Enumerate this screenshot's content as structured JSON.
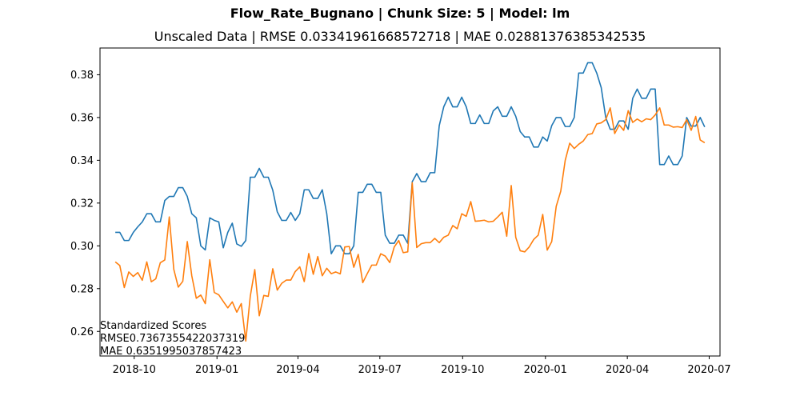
{
  "title": "Flow_Rate_Bugnano | Chunk Size: 5 | Model: lm",
  "subtitle": "Unscaled Data | RMSE 0.03341961668572718 | MAE 0.02881376385342535",
  "annotation": {
    "heading": "Standardized Scores",
    "rmse": "RMSE0.7367355422037319",
    "mae": "MAE 0.6351995037857423"
  },
  "chart_data": {
    "type": "line",
    "xlim": [
      "2018-08-24",
      "2020-07-13"
    ],
    "ylim": [
      0.2485,
      0.3925
    ],
    "grid": false,
    "x_ticks": [
      {
        "date": "2018-10-01",
        "label": "2018-10"
      },
      {
        "date": "2019-01-01",
        "label": "2019-01"
      },
      {
        "date": "2019-04-01",
        "label": "2019-04"
      },
      {
        "date": "2019-07-01",
        "label": "2019-07"
      },
      {
        "date": "2019-10-01",
        "label": "2019-10"
      },
      {
        "date": "2020-01-01",
        "label": "2020-01"
      },
      {
        "date": "2020-04-01",
        "label": "2020-04"
      },
      {
        "date": "2020-07-01",
        "label": "2020-07"
      }
    ],
    "y_ticks": [
      0.26,
      0.28,
      0.3,
      0.32,
      0.34,
      0.36,
      0.38
    ],
    "series": [
      {
        "color": "#1f77b4",
        "points": [
          [
            "2018-09-10",
            0.3063
          ],
          [
            "2018-09-15",
            0.3063
          ],
          [
            "2018-09-20",
            0.3025
          ],
          [
            "2018-09-25",
            0.3025
          ],
          [
            "2018-09-30",
            0.3063
          ],
          [
            "2018-10-05",
            0.3089
          ],
          [
            "2018-10-10",
            0.3112
          ],
          [
            "2018-10-15",
            0.315
          ],
          [
            "2018-10-20",
            0.315
          ],
          [
            "2018-10-25",
            0.3112
          ],
          [
            "2018-10-30",
            0.3112
          ],
          [
            "2018-11-04",
            0.3212
          ],
          [
            "2018-11-09",
            0.3231
          ],
          [
            "2018-11-14",
            0.3231
          ],
          [
            "2018-11-19",
            0.3272
          ],
          [
            "2018-11-24",
            0.3272
          ],
          [
            "2018-11-29",
            0.3231
          ],
          [
            "2018-12-04",
            0.315
          ],
          [
            "2018-12-09",
            0.3131
          ],
          [
            "2018-12-14",
            0.3
          ],
          [
            "2018-12-19",
            0.2981
          ],
          [
            "2018-12-24",
            0.3131
          ],
          [
            "2018-12-29",
            0.3119
          ],
          [
            "2019-01-03",
            0.3112
          ],
          [
            "2019-01-08",
            0.2991
          ],
          [
            "2019-01-13",
            0.3063
          ],
          [
            "2019-01-18",
            0.3106
          ],
          [
            "2019-01-23",
            0.3009
          ],
          [
            "2019-01-28",
            0.2998
          ],
          [
            "2019-02-02",
            0.3025
          ],
          [
            "2019-02-07",
            0.3321
          ],
          [
            "2019-02-12",
            0.3321
          ],
          [
            "2019-02-17",
            0.3362
          ],
          [
            "2019-02-22",
            0.3321
          ],
          [
            "2019-02-27",
            0.3321
          ],
          [
            "2019-03-04",
            0.326
          ],
          [
            "2019-03-09",
            0.3159
          ],
          [
            "2019-03-14",
            0.3119
          ],
          [
            "2019-03-19",
            0.3119
          ],
          [
            "2019-03-24",
            0.3156
          ],
          [
            "2019-03-29",
            0.3119
          ],
          [
            "2019-04-03",
            0.315
          ],
          [
            "2019-04-08",
            0.3262
          ],
          [
            "2019-04-13",
            0.3262
          ],
          [
            "2019-04-18",
            0.3222
          ],
          [
            "2019-04-23",
            0.3222
          ],
          [
            "2019-04-28",
            0.3262
          ],
          [
            "2019-05-03",
            0.315
          ],
          [
            "2019-05-08",
            0.2963
          ],
          [
            "2019-05-13",
            0.3
          ],
          [
            "2019-05-18",
            0.3
          ],
          [
            "2019-05-23",
            0.2963
          ],
          [
            "2019-05-28",
            0.2963
          ],
          [
            "2019-06-02",
            0.3
          ],
          [
            "2019-06-07",
            0.325
          ],
          [
            "2019-06-12",
            0.325
          ],
          [
            "2019-06-17",
            0.3288
          ],
          [
            "2019-06-22",
            0.3288
          ],
          [
            "2019-06-27",
            0.325
          ],
          [
            "2019-07-02",
            0.325
          ],
          [
            "2019-07-07",
            0.305
          ],
          [
            "2019-07-12",
            0.3012
          ],
          [
            "2019-07-17",
            0.3012
          ],
          [
            "2019-07-22",
            0.305
          ],
          [
            "2019-07-27",
            0.305
          ],
          [
            "2019-08-01",
            0.3012
          ],
          [
            "2019-08-06",
            0.33
          ],
          [
            "2019-08-11",
            0.3338
          ],
          [
            "2019-08-16",
            0.33
          ],
          [
            "2019-08-21",
            0.33
          ],
          [
            "2019-08-26",
            0.3342
          ],
          [
            "2019-08-31",
            0.3342
          ],
          [
            "2019-09-05",
            0.3562
          ],
          [
            "2019-09-10",
            0.365
          ],
          [
            "2019-09-15",
            0.3695
          ],
          [
            "2019-09-20",
            0.365
          ],
          [
            "2019-09-25",
            0.365
          ],
          [
            "2019-09-30",
            0.3695
          ],
          [
            "2019-10-05",
            0.365
          ],
          [
            "2019-10-10",
            0.3572
          ],
          [
            "2019-10-15",
            0.3572
          ],
          [
            "2019-10-20",
            0.3612
          ],
          [
            "2019-10-25",
            0.3572
          ],
          [
            "2019-10-30",
            0.3572
          ],
          [
            "2019-11-04",
            0.3631
          ],
          [
            "2019-11-09",
            0.365
          ],
          [
            "2019-11-14",
            0.3606
          ],
          [
            "2019-11-19",
            0.3606
          ],
          [
            "2019-11-24",
            0.365
          ],
          [
            "2019-11-29",
            0.3606
          ],
          [
            "2019-12-04",
            0.3534
          ],
          [
            "2019-12-09",
            0.3509
          ],
          [
            "2019-12-14",
            0.3509
          ],
          [
            "2019-12-19",
            0.3462
          ],
          [
            "2019-12-24",
            0.3462
          ],
          [
            "2019-12-29",
            0.3509
          ],
          [
            "2020-01-03",
            0.349
          ],
          [
            "2020-01-08",
            0.3562
          ],
          [
            "2020-01-13",
            0.36
          ],
          [
            "2020-01-18",
            0.36
          ],
          [
            "2020-01-23",
            0.3558
          ],
          [
            "2020-01-28",
            0.3558
          ],
          [
            "2020-02-02",
            0.36
          ],
          [
            "2020-02-07",
            0.3808
          ],
          [
            "2020-02-12",
            0.3808
          ],
          [
            "2020-02-17",
            0.3856
          ],
          [
            "2020-02-22",
            0.3856
          ],
          [
            "2020-02-27",
            0.3808
          ],
          [
            "2020-03-03",
            0.374
          ],
          [
            "2020-03-08",
            0.36
          ],
          [
            "2020-03-13",
            0.3545
          ],
          [
            "2020-03-18",
            0.3545
          ],
          [
            "2020-03-23",
            0.3584
          ],
          [
            "2020-03-28",
            0.3584
          ],
          [
            "2020-04-02",
            0.3545
          ],
          [
            "2020-04-07",
            0.369
          ],
          [
            "2020-04-12",
            0.3733
          ],
          [
            "2020-04-17",
            0.369
          ],
          [
            "2020-04-22",
            0.369
          ],
          [
            "2020-04-27",
            0.3733
          ],
          [
            "2020-05-02",
            0.3733
          ],
          [
            "2020-05-07",
            0.338
          ],
          [
            "2020-05-12",
            0.338
          ],
          [
            "2020-05-17",
            0.342
          ],
          [
            "2020-05-22",
            0.338
          ],
          [
            "2020-05-27",
            0.338
          ],
          [
            "2020-06-01",
            0.342
          ],
          [
            "2020-06-06",
            0.36
          ],
          [
            "2020-06-11",
            0.356
          ],
          [
            "2020-06-16",
            0.356
          ],
          [
            "2020-06-21",
            0.36
          ],
          [
            "2020-06-26",
            0.3556
          ]
        ]
      },
      {
        "color": "#ff7f0e",
        "points": [
          [
            "2018-09-10",
            0.2925
          ],
          [
            "2018-09-15",
            0.2908
          ],
          [
            "2018-09-20",
            0.2805
          ],
          [
            "2018-09-25",
            0.2878
          ],
          [
            "2018-09-30",
            0.2857
          ],
          [
            "2018-10-05",
            0.2875
          ],
          [
            "2018-10-10",
            0.2839
          ],
          [
            "2018-10-15",
            0.2925
          ],
          [
            "2018-10-20",
            0.2832
          ],
          [
            "2018-10-25",
            0.2846
          ],
          [
            "2018-10-30",
            0.2921
          ],
          [
            "2018-11-04",
            0.2934
          ],
          [
            "2018-11-09",
            0.3135
          ],
          [
            "2018-11-14",
            0.289
          ],
          [
            "2018-11-19",
            0.2807
          ],
          [
            "2018-11-24",
            0.2834
          ],
          [
            "2018-11-29",
            0.302
          ],
          [
            "2018-12-04",
            0.286
          ],
          [
            "2018-12-09",
            0.2755
          ],
          [
            "2018-12-14",
            0.277
          ],
          [
            "2018-12-19",
            0.273
          ],
          [
            "2018-12-24",
            0.2935
          ],
          [
            "2018-12-29",
            0.2782
          ],
          [
            "2019-01-03",
            0.2771
          ],
          [
            "2019-01-08",
            0.274
          ],
          [
            "2019-01-13",
            0.271
          ],
          [
            "2019-01-18",
            0.2738
          ],
          [
            "2019-01-23",
            0.269
          ],
          [
            "2019-01-28",
            0.273
          ],
          [
            "2019-02-02",
            0.2555
          ],
          [
            "2019-02-07",
            0.2764
          ],
          [
            "2019-02-12",
            0.2889
          ],
          [
            "2019-02-17",
            0.2673
          ],
          [
            "2019-02-22",
            0.2768
          ],
          [
            "2019-02-27",
            0.2764
          ],
          [
            "2019-03-04",
            0.2893
          ],
          [
            "2019-03-09",
            0.2793
          ],
          [
            "2019-03-14",
            0.2825
          ],
          [
            "2019-03-19",
            0.284
          ],
          [
            "2019-03-24",
            0.284
          ],
          [
            "2019-03-29",
            0.288
          ],
          [
            "2019-04-03",
            0.2902
          ],
          [
            "2019-04-08",
            0.2833
          ],
          [
            "2019-04-13",
            0.2964
          ],
          [
            "2019-04-18",
            0.2867
          ],
          [
            "2019-04-23",
            0.295
          ],
          [
            "2019-04-28",
            0.286
          ],
          [
            "2019-05-03",
            0.2895
          ],
          [
            "2019-05-08",
            0.287
          ],
          [
            "2019-05-13",
            0.2878
          ],
          [
            "2019-05-18",
            0.2869
          ],
          [
            "2019-05-23",
            0.2995
          ],
          [
            "2019-05-28",
            0.2997
          ],
          [
            "2019-06-02",
            0.29
          ],
          [
            "2019-06-07",
            0.296
          ],
          [
            "2019-06-12",
            0.2828
          ],
          [
            "2019-06-17",
            0.287
          ],
          [
            "2019-06-22",
            0.291
          ],
          [
            "2019-06-27",
            0.291
          ],
          [
            "2019-07-02",
            0.2963
          ],
          [
            "2019-07-07",
            0.2952
          ],
          [
            "2019-07-12",
            0.2922
          ],
          [
            "2019-07-17",
            0.2995
          ],
          [
            "2019-07-22",
            0.3025
          ],
          [
            "2019-07-27",
            0.2968
          ],
          [
            "2019-08-01",
            0.2972
          ],
          [
            "2019-08-06",
            0.3295
          ],
          [
            "2019-08-11",
            0.2992
          ],
          [
            "2019-08-16",
            0.301
          ],
          [
            "2019-08-21",
            0.3015
          ],
          [
            "2019-08-26",
            0.3015
          ],
          [
            "2019-08-31",
            0.3035
          ],
          [
            "2019-09-05",
            0.3015
          ],
          [
            "2019-09-10",
            0.304
          ],
          [
            "2019-09-15",
            0.305
          ],
          [
            "2019-09-20",
            0.3095
          ],
          [
            "2019-09-25",
            0.308
          ],
          [
            "2019-09-30",
            0.315
          ],
          [
            "2019-10-05",
            0.3138
          ],
          [
            "2019-10-10",
            0.3207
          ],
          [
            "2019-10-15",
            0.3115
          ],
          [
            "2019-10-20",
            0.3117
          ],
          [
            "2019-10-25",
            0.312
          ],
          [
            "2019-10-30",
            0.3112
          ],
          [
            "2019-11-04",
            0.3115
          ],
          [
            "2019-11-09",
            0.3135
          ],
          [
            "2019-11-14",
            0.3157
          ],
          [
            "2019-11-19",
            0.3045
          ],
          [
            "2019-11-24",
            0.3282
          ],
          [
            "2019-11-29",
            0.304
          ],
          [
            "2019-12-04",
            0.2977
          ],
          [
            "2019-12-09",
            0.2972
          ],
          [
            "2019-12-14",
            0.2995
          ],
          [
            "2019-12-19",
            0.303
          ],
          [
            "2019-12-24",
            0.305
          ],
          [
            "2019-12-29",
            0.3147
          ],
          [
            "2020-01-03",
            0.298
          ],
          [
            "2020-01-08",
            0.302
          ],
          [
            "2020-01-13",
            0.3185
          ],
          [
            "2020-01-18",
            0.3255
          ],
          [
            "2020-01-23",
            0.34
          ],
          [
            "2020-01-28",
            0.348
          ],
          [
            "2020-02-02",
            0.3455
          ],
          [
            "2020-02-07",
            0.3475
          ],
          [
            "2020-02-12",
            0.349
          ],
          [
            "2020-02-17",
            0.352
          ],
          [
            "2020-02-22",
            0.3525
          ],
          [
            "2020-02-27",
            0.357
          ],
          [
            "2020-03-03",
            0.3575
          ],
          [
            "2020-03-08",
            0.359
          ],
          [
            "2020-03-13",
            0.3645
          ],
          [
            "2020-03-18",
            0.3525
          ],
          [
            "2020-03-23",
            0.3565
          ],
          [
            "2020-03-28",
            0.354
          ],
          [
            "2020-04-02",
            0.3632
          ],
          [
            "2020-04-07",
            0.3577
          ],
          [
            "2020-04-12",
            0.3593
          ],
          [
            "2020-04-17",
            0.358
          ],
          [
            "2020-04-22",
            0.3594
          ],
          [
            "2020-04-27",
            0.359
          ],
          [
            "2020-05-02",
            0.3612
          ],
          [
            "2020-05-07",
            0.3645
          ],
          [
            "2020-05-12",
            0.3565
          ],
          [
            "2020-05-17",
            0.3565
          ],
          [
            "2020-05-22",
            0.3555
          ],
          [
            "2020-05-27",
            0.3557
          ],
          [
            "2020-06-01",
            0.3553
          ],
          [
            "2020-06-06",
            0.359
          ],
          [
            "2020-06-11",
            0.354
          ],
          [
            "2020-06-16",
            0.3605
          ],
          [
            "2020-06-21",
            0.3495
          ],
          [
            "2020-06-26",
            0.3482
          ]
        ]
      }
    ]
  }
}
